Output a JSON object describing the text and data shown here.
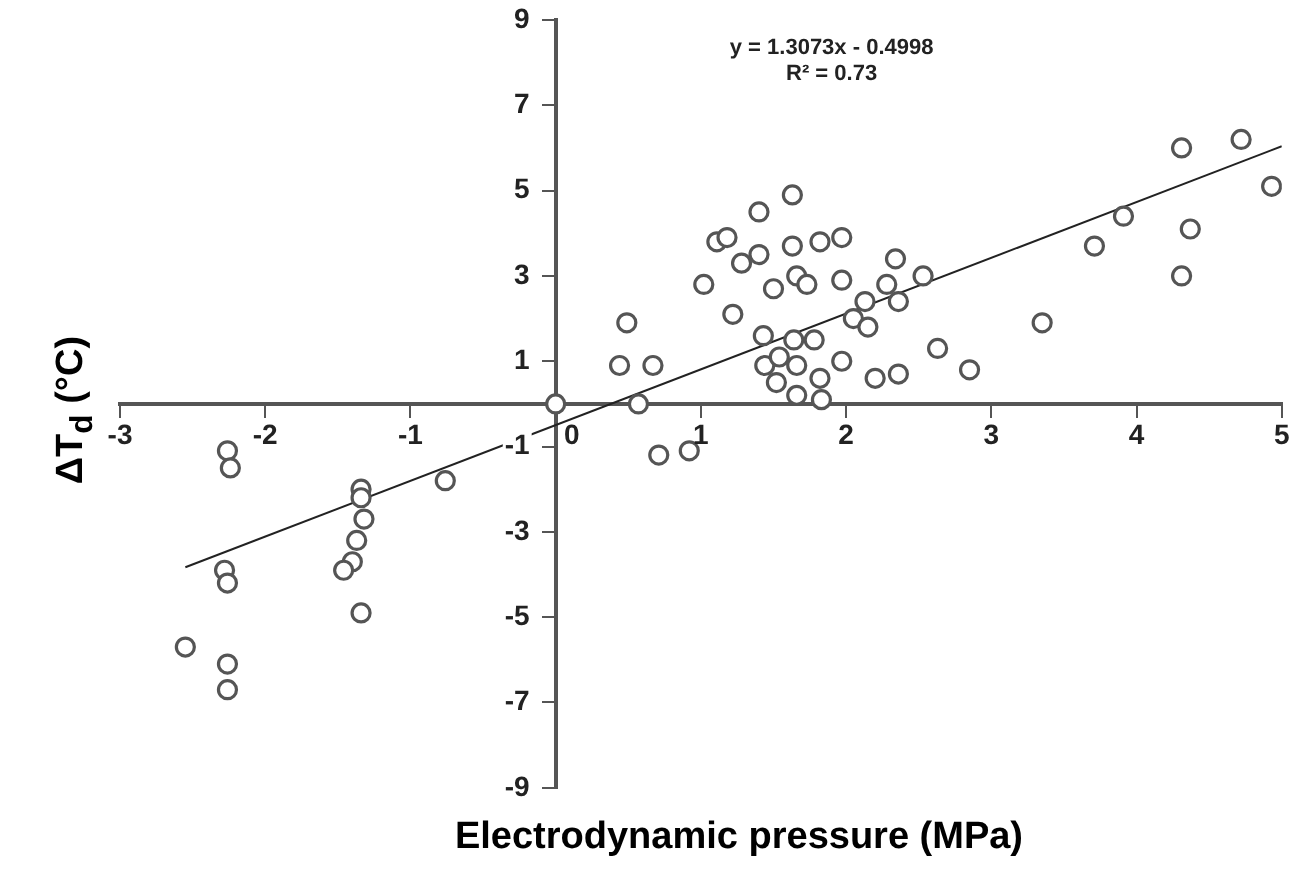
{
  "chart_data": {
    "type": "scatter",
    "xlabel": "Electrodynamic pressure (MPa)",
    "ylabel": "ΔT$_{d}$ (°C)",
    "annotations": [
      "y = 1.3073x - 0.4998",
      "R² = 0.73"
    ],
    "xlim": [
      -3,
      5
    ],
    "xticks": [
      -3,
      -2,
      -1,
      0,
      1,
      2,
      3,
      4,
      5
    ],
    "ylim": [
      -9,
      9
    ],
    "yticks": [
      -9,
      -7,
      -5,
      -3,
      -1,
      1,
      3,
      5,
      7,
      9
    ],
    "grid": false,
    "legend": false,
    "marker": "circle",
    "series": [
      {
        "type": "scatter",
        "color": "#555555",
        "x": [
          -2.26,
          -2.24,
          -2.28,
          -2.26,
          -2.55,
          -2.26,
          -2.26,
          -1.34,
          -1.34,
          -1.32,
          -1.37,
          -1.4,
          -1.46,
          -1.34,
          -0.76,
          0,
          0.57,
          0.71,
          0.92,
          0.49,
          0.44,
          0.67,
          1.02,
          1.11,
          1.18,
          1.28,
          1.4,
          1.4,
          1.22,
          1.43,
          1.5,
          1.63,
          1.63,
          1.66,
          1.73,
          1.82,
          1.97,
          1.97,
          1.44,
          1.52,
          1.54,
          1.64,
          1.66,
          1.66,
          1.78,
          1.82,
          1.83,
          1.97,
          2.05,
          2.13,
          2.15,
          2.2,
          2.36,
          2.28,
          2.34,
          2.36,
          2.53,
          2.63,
          2.85,
          3.35,
          3.71,
          3.91,
          4.31,
          4.31,
          4.37,
          4.72,
          4.93
        ],
        "values": [
          -1.1,
          -1.5,
          -3.9,
          -4.2,
          -5.7,
          -6.1,
          -6.7,
          -2.0,
          -2.2,
          -2.7,
          -3.2,
          -3.7,
          -3.9,
          -4.9,
          -1.8,
          0,
          0,
          -1.2,
          -1.1,
          1.9,
          0.9,
          0.9,
          2.8,
          3.8,
          3.9,
          3.3,
          4.5,
          3.5,
          2.1,
          1.6,
          2.7,
          4.9,
          3.7,
          3.0,
          2.8,
          3.8,
          3.9,
          2.9,
          0.9,
          0.5,
          1.1,
          1.5,
          0.9,
          0.2,
          1.5,
          0.6,
          0.1,
          1.0,
          2.0,
          2.4,
          1.8,
          0.6,
          0.7,
          2.8,
          3.4,
          2.4,
          3.0,
          1.3,
          0.8,
          1.9,
          3.7,
          4.4,
          6.0,
          3.0,
          4.1,
          6.2,
          5.1
        ]
      },
      {
        "type": "line",
        "color": "#222222",
        "marker": "none",
        "line_style": "solid",
        "x": [
          -2.55,
          5
        ],
        "values": [
          -3.83,
          6.04
        ]
      }
    ]
  }
}
